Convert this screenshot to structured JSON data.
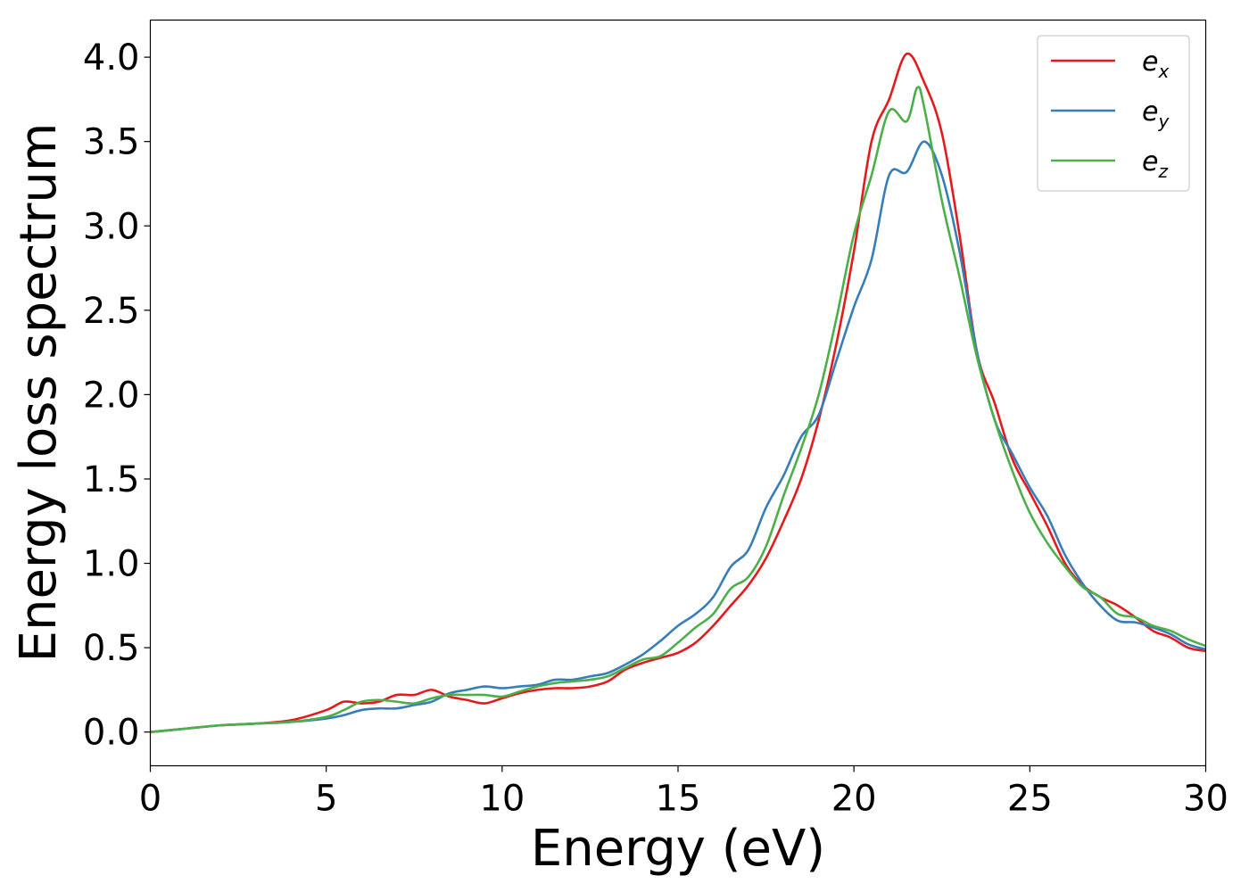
{
  "chart_data": {
    "type": "line",
    "title": "",
    "xlabel": "Energy (eV)",
    "ylabel": "Energy loss spectrum",
    "xlim": [
      0,
      30
    ],
    "ylim": [
      -0.2,
      4.22
    ],
    "xticks": [
      0,
      5,
      10,
      15,
      20,
      25,
      30
    ],
    "xtick_labels": [
      "0",
      "5",
      "10",
      "15",
      "20",
      "25",
      "30"
    ],
    "yticks": [
      0.0,
      0.5,
      1.0,
      1.5,
      2.0,
      2.5,
      3.0,
      3.5,
      4.0
    ],
    "ytick_labels": [
      "0.0",
      "0.5",
      "1.0",
      "1.5",
      "2.0",
      "2.5",
      "3.0",
      "3.5",
      "4.0"
    ],
    "grid": false,
    "legend_position": "top-right",
    "series": [
      {
        "name": "e_x",
        "label_base": "e",
        "label_sub": "x",
        "color": "#e41a1c",
        "points": [
          [
            0,
            0.0
          ],
          [
            1,
            0.02
          ],
          [
            2,
            0.04
          ],
          [
            3,
            0.05
          ],
          [
            4,
            0.07
          ],
          [
            5,
            0.13
          ],
          [
            5.5,
            0.18
          ],
          [
            6,
            0.17
          ],
          [
            6.5,
            0.18
          ],
          [
            7,
            0.22
          ],
          [
            7.5,
            0.22
          ],
          [
            8,
            0.25
          ],
          [
            8.5,
            0.21
          ],
          [
            9,
            0.19
          ],
          [
            9.5,
            0.17
          ],
          [
            10,
            0.2
          ],
          [
            10.5,
            0.23
          ],
          [
            11,
            0.25
          ],
          [
            11.5,
            0.26
          ],
          [
            12,
            0.26
          ],
          [
            12.5,
            0.27
          ],
          [
            13,
            0.3
          ],
          [
            13.5,
            0.37
          ],
          [
            14,
            0.41
          ],
          [
            14.5,
            0.44
          ],
          [
            15,
            0.47
          ],
          [
            15.5,
            0.53
          ],
          [
            16,
            0.63
          ],
          [
            16.5,
            0.75
          ],
          [
            17,
            0.87
          ],
          [
            17.5,
            1.03
          ],
          [
            18,
            1.25
          ],
          [
            18.5,
            1.5
          ],
          [
            19,
            1.85
          ],
          [
            19.5,
            2.3
          ],
          [
            20,
            2.85
          ],
          [
            20.5,
            3.5
          ],
          [
            21,
            3.75
          ],
          [
            21.5,
            4.02
          ],
          [
            22,
            3.85
          ],
          [
            22.5,
            3.55
          ],
          [
            23,
            2.95
          ],
          [
            23.5,
            2.25
          ],
          [
            24,
            1.95
          ],
          [
            24.5,
            1.62
          ],
          [
            25,
            1.42
          ],
          [
            25.5,
            1.22
          ],
          [
            26,
            1.0
          ],
          [
            26.5,
            0.87
          ],
          [
            27,
            0.8
          ],
          [
            27.5,
            0.75
          ],
          [
            28,
            0.68
          ],
          [
            28.5,
            0.6
          ],
          [
            29,
            0.56
          ],
          [
            29.5,
            0.5
          ],
          [
            30,
            0.48
          ]
        ]
      },
      {
        "name": "e_y",
        "label_base": "e",
        "label_sub": "y",
        "color": "#377eb8",
        "points": [
          [
            0,
            0.0
          ],
          [
            1,
            0.02
          ],
          [
            2,
            0.04
          ],
          [
            3,
            0.05
          ],
          [
            4,
            0.06
          ],
          [
            5,
            0.08
          ],
          [
            5.5,
            0.1
          ],
          [
            6,
            0.13
          ],
          [
            6.5,
            0.14
          ],
          [
            7,
            0.14
          ],
          [
            7.5,
            0.16
          ],
          [
            8,
            0.18
          ],
          [
            8.5,
            0.23
          ],
          [
            9,
            0.25
          ],
          [
            9.5,
            0.27
          ],
          [
            10,
            0.26
          ],
          [
            10.5,
            0.27
          ],
          [
            11,
            0.28
          ],
          [
            11.5,
            0.31
          ],
          [
            12,
            0.31
          ],
          [
            12.5,
            0.33
          ],
          [
            13,
            0.35
          ],
          [
            13.5,
            0.4
          ],
          [
            14,
            0.46
          ],
          [
            14.5,
            0.54
          ],
          [
            15,
            0.63
          ],
          [
            15.5,
            0.7
          ],
          [
            16,
            0.8
          ],
          [
            16.5,
            0.98
          ],
          [
            17,
            1.08
          ],
          [
            17.5,
            1.33
          ],
          [
            18,
            1.52
          ],
          [
            18.5,
            1.75
          ],
          [
            19,
            1.88
          ],
          [
            19.5,
            2.2
          ],
          [
            20,
            2.52
          ],
          [
            20.5,
            2.8
          ],
          [
            21,
            3.3
          ],
          [
            21.5,
            3.32
          ],
          [
            22,
            3.5
          ],
          [
            22.5,
            3.3
          ],
          [
            23,
            2.85
          ],
          [
            23.5,
            2.25
          ],
          [
            24,
            1.85
          ],
          [
            24.5,
            1.65
          ],
          [
            25,
            1.45
          ],
          [
            25.5,
            1.28
          ],
          [
            26,
            1.05
          ],
          [
            26.5,
            0.88
          ],
          [
            27,
            0.75
          ],
          [
            27.5,
            0.66
          ],
          [
            28,
            0.65
          ],
          [
            28.5,
            0.62
          ],
          [
            29,
            0.58
          ],
          [
            29.5,
            0.52
          ],
          [
            30,
            0.49
          ]
        ]
      },
      {
        "name": "e_z",
        "label_base": "e",
        "label_sub": "z",
        "color": "#4daf4a",
        "points": [
          [
            0,
            0.0
          ],
          [
            1,
            0.02
          ],
          [
            2,
            0.04
          ],
          [
            3,
            0.05
          ],
          [
            4,
            0.06
          ],
          [
            5,
            0.09
          ],
          [
            5.5,
            0.13
          ],
          [
            6,
            0.18
          ],
          [
            6.5,
            0.19
          ],
          [
            7,
            0.18
          ],
          [
            7.5,
            0.17
          ],
          [
            8,
            0.2
          ],
          [
            8.5,
            0.22
          ],
          [
            9,
            0.22
          ],
          [
            9.5,
            0.22
          ],
          [
            10,
            0.21
          ],
          [
            10.5,
            0.24
          ],
          [
            11,
            0.27
          ],
          [
            11.5,
            0.29
          ],
          [
            12,
            0.3
          ],
          [
            12.5,
            0.31
          ],
          [
            13,
            0.33
          ],
          [
            13.5,
            0.38
          ],
          [
            14,
            0.43
          ],
          [
            14.5,
            0.45
          ],
          [
            15,
            0.53
          ],
          [
            15.5,
            0.62
          ],
          [
            16,
            0.7
          ],
          [
            16.5,
            0.85
          ],
          [
            17,
            0.92
          ],
          [
            17.5,
            1.1
          ],
          [
            18,
            1.4
          ],
          [
            18.5,
            1.68
          ],
          [
            19,
            2.0
          ],
          [
            19.5,
            2.45
          ],
          [
            20,
            2.95
          ],
          [
            20.5,
            3.3
          ],
          [
            21,
            3.68
          ],
          [
            21.5,
            3.62
          ],
          [
            21.8,
            3.82
          ],
          [
            22,
            3.7
          ],
          [
            22.5,
            3.15
          ],
          [
            23,
            2.7
          ],
          [
            23.5,
            2.22
          ],
          [
            24,
            1.85
          ],
          [
            24.5,
            1.55
          ],
          [
            25,
            1.3
          ],
          [
            25.5,
            1.12
          ],
          [
            26,
            0.98
          ],
          [
            26.5,
            0.86
          ],
          [
            27,
            0.8
          ],
          [
            27.5,
            0.7
          ],
          [
            28,
            0.68
          ],
          [
            28.5,
            0.63
          ],
          [
            29,
            0.6
          ],
          [
            29.5,
            0.55
          ],
          [
            30,
            0.51
          ]
        ]
      }
    ]
  }
}
